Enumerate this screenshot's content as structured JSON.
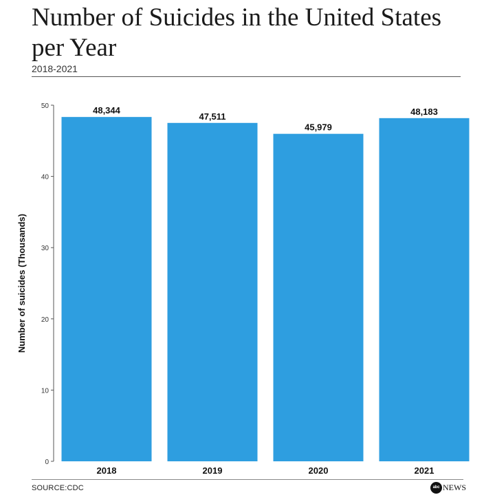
{
  "header": {
    "title": "Number of Suicides in the United States per Year",
    "subtitle": "2018-2021"
  },
  "footer": {
    "source": "SOURCE:CDC",
    "logo_mark": "abc",
    "logo_word": "NEWS"
  },
  "colors": {
    "bar": "#2e9ee0",
    "text": "#111111",
    "axis": "#555555"
  },
  "chart_data": {
    "type": "bar",
    "categories": [
      "2018",
      "2019",
      "2020",
      "2021"
    ],
    "values": [
      48.344,
      47.511,
      45.979,
      48.183
    ],
    "data_labels": [
      "48,344",
      "47,511",
      "45,979",
      "48,183"
    ],
    "title": "Number of Suicides in the United States per Year",
    "subtitle": "2018-2021",
    "xlabel": "",
    "ylabel": "Number of suicides (Thousands)",
    "ylim": [
      0,
      50
    ],
    "yticks": [
      "0",
      "10",
      "20",
      "30",
      "40",
      "50"
    ],
    "grid": false,
    "legend": "none"
  }
}
